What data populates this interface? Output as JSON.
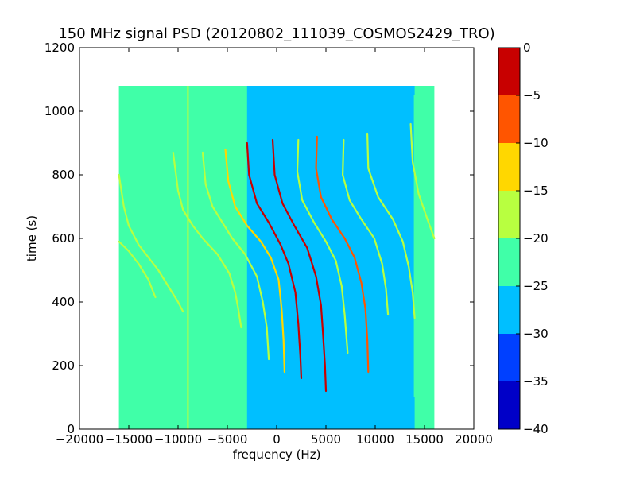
{
  "chart_data": {
    "type": "heatmap",
    "title": "150 MHz signal PSD (20120802_111039_COSMOS2429_TRO)",
    "xlabel": "frequency (Hz)",
    "ylabel": "time (s)",
    "xlim": [
      -20000,
      20000
    ],
    "ylim": [
      0,
      1200
    ],
    "x_ticks": [
      -20000,
      -15000,
      -10000,
      -5000,
      0,
      5000,
      10000,
      15000,
      20000
    ],
    "y_ticks": [
      0,
      200,
      400,
      600,
      800,
      1000,
      1200
    ],
    "x_tick_labels": [
      "−20000",
      "−15000",
      "−10000",
      "−5000",
      "0",
      "5000",
      "10000",
      "15000",
      "20000"
    ],
    "y_tick_labels": [
      "0",
      "200",
      "400",
      "600",
      "800",
      "1000",
      "1200"
    ],
    "grid": false,
    "data_extent": {
      "x": [
        -16000,
        16000
      ],
      "y": [
        0,
        1080
      ]
    },
    "background_level": -22.5,
    "center_band": {
      "x": [
        -3000,
        14000
      ],
      "level": -27.5
    },
    "colorbar": {
      "levels": [
        -40,
        -35,
        -30,
        -25,
        -20,
        -15,
        -10,
        -5,
        0
      ],
      "tick_labels": [
        "−40",
        "−35",
        "−30",
        "−25",
        "−20",
        "−15",
        "−10",
        "−5",
        "0"
      ],
      "colors": [
        "#0000c8",
        "#0040ff",
        "#00bfff",
        "#40ffa8",
        "#b8ff40",
        "#ffd700",
        "#ff5500",
        "#c80000"
      ]
    },
    "vertical_lines": [
      {
        "x": -9000,
        "y": [
          0,
          1080
        ],
        "level": -17.5
      },
      {
        "x": 14000,
        "y": [
          100,
          1050
        ],
        "level": -22.5
      }
    ],
    "traces": [
      {
        "level": -17.5,
        "points": [
          [
            -16000,
            590
          ],
          [
            -15000,
            560
          ],
          [
            -14000,
            520
          ],
          [
            -13000,
            470
          ],
          [
            -12500,
            430
          ],
          [
            -12300,
            415
          ]
        ]
      },
      {
        "level": -17.5,
        "points": [
          [
            -16000,
            800
          ],
          [
            -15500,
            700
          ],
          [
            -15000,
            640
          ],
          [
            -14000,
            580
          ],
          [
            -13000,
            540
          ],
          [
            -12000,
            500
          ],
          [
            -11000,
            450
          ],
          [
            -10000,
            400
          ],
          [
            -9500,
            370
          ]
        ]
      },
      {
        "level": -17.5,
        "points": [
          [
            -10500,
            870
          ],
          [
            -10000,
            750
          ],
          [
            -9500,
            690
          ],
          [
            -8500,
            640
          ],
          [
            -7500,
            600
          ],
          [
            -6000,
            550
          ],
          [
            -4800,
            490
          ],
          [
            -4200,
            430
          ],
          [
            -3900,
            380
          ],
          [
            -3600,
            320
          ]
        ]
      },
      {
        "level": -17.5,
        "points": [
          [
            -7500,
            870
          ],
          [
            -7200,
            770
          ],
          [
            -6500,
            700
          ],
          [
            -5500,
            650
          ],
          [
            -4500,
            600
          ],
          [
            -3200,
            550
          ],
          [
            -2000,
            480
          ],
          [
            -1400,
            400
          ],
          [
            -1000,
            320
          ],
          [
            -800,
            220
          ]
        ]
      },
      {
        "level": -12.5,
        "points": [
          [
            -5200,
            880
          ],
          [
            -4900,
            780
          ],
          [
            -4200,
            700
          ],
          [
            -3000,
            640
          ],
          [
            -1600,
            590
          ],
          [
            -600,
            540
          ],
          [
            200,
            470
          ],
          [
            500,
            380
          ],
          [
            700,
            280
          ],
          [
            800,
            180
          ]
        ]
      },
      {
        "level": -2.5,
        "points": [
          [
            -3000,
            900
          ],
          [
            -2800,
            800
          ],
          [
            -2000,
            710
          ],
          [
            -800,
            650
          ],
          [
            400,
            580
          ],
          [
            1200,
            520
          ],
          [
            1900,
            430
          ],
          [
            2200,
            330
          ],
          [
            2400,
            230
          ],
          [
            2500,
            160
          ]
        ]
      },
      {
        "level": -2.5,
        "points": [
          [
            -400,
            910
          ],
          [
            -200,
            800
          ],
          [
            600,
            710
          ],
          [
            1800,
            640
          ],
          [
            3100,
            570
          ],
          [
            4000,
            480
          ],
          [
            4500,
            390
          ],
          [
            4700,
            300
          ],
          [
            4900,
            200
          ],
          [
            5000,
            120
          ]
        ]
      },
      {
        "level": -17.5,
        "points": [
          [
            2200,
            910
          ],
          [
            2100,
            810
          ],
          [
            2600,
            720
          ],
          [
            3800,
            650
          ],
          [
            5000,
            590
          ],
          [
            6000,
            530
          ],
          [
            6600,
            450
          ],
          [
            6900,
            360
          ],
          [
            7200,
            240
          ]
        ]
      },
      {
        "level": -7.5,
        "points": [
          [
            4100,
            920
          ],
          [
            4000,
            820
          ],
          [
            4500,
            730
          ],
          [
            5600,
            660
          ],
          [
            6900,
            600
          ],
          [
            7900,
            540
          ],
          [
            8600,
            460
          ],
          [
            9000,
            380
          ],
          [
            9200,
            280
          ],
          [
            9300,
            180
          ]
        ]
      },
      {
        "level": -17.5,
        "points": [
          [
            6800,
            910
          ],
          [
            6700,
            800
          ],
          [
            7400,
            720
          ],
          [
            8600,
            660
          ],
          [
            9900,
            600
          ],
          [
            10700,
            520
          ],
          [
            11100,
            440
          ],
          [
            11300,
            360
          ]
        ]
      },
      {
        "level": -17.5,
        "points": [
          [
            9200,
            930
          ],
          [
            9300,
            820
          ],
          [
            10300,
            730
          ],
          [
            11800,
            660
          ],
          [
            12800,
            590
          ],
          [
            13400,
            510
          ],
          [
            13800,
            430
          ],
          [
            14000,
            350
          ]
        ]
      },
      {
        "level": -17.5,
        "points": [
          [
            13600,
            960
          ],
          [
            13800,
            840
          ],
          [
            14400,
            740
          ],
          [
            15300,
            660
          ],
          [
            16000,
            600
          ]
        ]
      }
    ]
  }
}
